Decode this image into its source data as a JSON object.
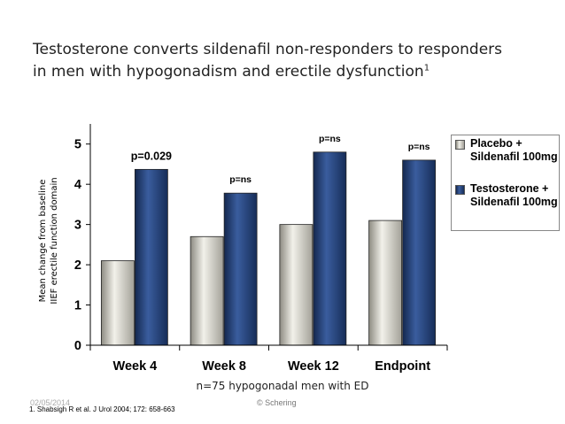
{
  "slide": {
    "title_line1": "Testosterone converts sildenafil non-responders to responders",
    "title_line2": "in men with hypogonadism and erectile dysfunction",
    "title_sup": "1",
    "note": "n=75 hypogonadal men with ED",
    "date": "02/05/2014",
    "copyright": "© Schering",
    "footnote": "1. Shabsigh R et al. J Urol 2004; 172: 658-663"
  },
  "chart_data": {
    "type": "bar",
    "categories": [
      "Week 4",
      "Week 8",
      "Week 12",
      "Endpoint"
    ],
    "series": [
      {
        "name": "Placebo + Sildenafil 100mg",
        "values": [
          2.1,
          2.7,
          3.0,
          3.1
        ],
        "color": "#c8c6bc"
      },
      {
        "name": "Testosterone + Sildenafil 100mg",
        "values": [
          4.37,
          3.78,
          4.8,
          4.6
        ],
        "color": "#23437f"
      }
    ],
    "annotations": [
      "p=0.029",
      "p=ns",
      "p=ns",
      "p=ns"
    ],
    "ylabel_line1": "Mean change from baseline",
    "ylabel_line2": "IIEF erectile function domain",
    "yticks": [
      "0",
      "1",
      "2",
      "3",
      "4",
      "5"
    ],
    "ylim": [
      0,
      5.5
    ],
    "grid": false,
    "legend_position": "right"
  }
}
